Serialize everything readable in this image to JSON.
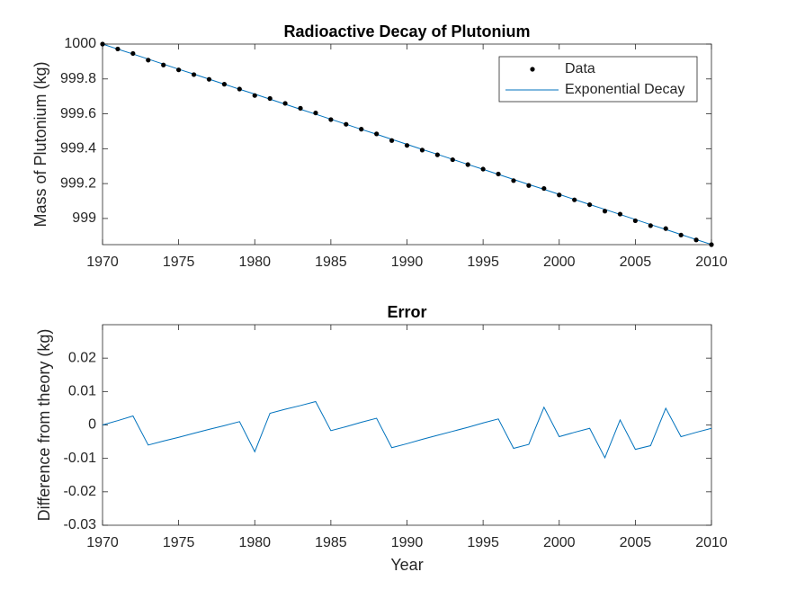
{
  "chart_data": [
    {
      "type": "combo",
      "title": "Radioactive Decay of Plutonium",
      "y_label": "Mass of Plutonium (kg)",
      "x": [
        1970,
        1971,
        1972,
        1973,
        1974,
        1975,
        1976,
        1977,
        1978,
        1979,
        1980,
        1981,
        1982,
        1983,
        1984,
        1985,
        1986,
        1987,
        1988,
        1989,
        1990,
        1991,
        1992,
        1993,
        1994,
        1995,
        1996,
        1997,
        1998,
        1999,
        2000,
        2001,
        2002,
        2003,
        2004,
        2005,
        2006,
        2007,
        2008,
        2009,
        2010
      ],
      "series": [
        {
          "name": "Data",
          "kind": "scatter",
          "color": "#000000",
          "values": [
            1000,
            999.972,
            999.946,
            999.908,
            999.88,
            999.852,
            999.825,
            999.798,
            999.77,
            999.742,
            999.705,
            999.688,
            999.66,
            999.632,
            999.605,
            999.567,
            999.54,
            999.512,
            999.485,
            999.447,
            999.419,
            999.392,
            999.365,
            999.337,
            999.309,
            999.283,
            999.255,
            999.217,
            999.189,
            999.172,
            999.135,
            999.107,
            999.079,
            999.042,
            999.025,
            998.987,
            998.959,
            998.942,
            998.905,
            998.877,
            998.85
          ]
        },
        {
          "name": "Exponential Decay",
          "kind": "line",
          "color": "#0072bd",
          "values": [
            1000,
            999.971,
            999.943,
            999.914,
            999.885,
            999.856,
            999.828,
            999.799,
            999.77,
            999.741,
            999.713,
            999.684,
            999.655,
            999.626,
            999.598,
            999.569,
            999.54,
            999.511,
            999.483,
            999.454,
            999.425,
            999.396,
            999.368,
            999.339,
            999.31,
            999.282,
            999.253,
            999.224,
            999.195,
            999.167,
            999.138,
            999.109,
            999.08,
            999.052,
            999.023,
            998.994,
            998.965,
            998.937,
            998.908,
            998.879,
            998.851
          ]
        }
      ],
      "xlim": [
        1970,
        2010
      ],
      "xticks": [
        1970,
        1975,
        1980,
        1985,
        1990,
        1995,
        2000,
        2005,
        2010
      ],
      "ylim": [
        998.85,
        1000
      ],
      "yticks": [
        999,
        999.2,
        999.4,
        999.6,
        999.8,
        1000
      ],
      "legend": "northeast"
    },
    {
      "type": "line",
      "title": "Error",
      "x_label": "Year",
      "y_label": "Difference from theory (kg)",
      "x": [
        1970,
        1971,
        1972,
        1973,
        1974,
        1975,
        1976,
        1977,
        1978,
        1979,
        1980,
        1981,
        1982,
        1983,
        1984,
        1985,
        1986,
        1987,
        1988,
        1989,
        1990,
        1991,
        1992,
        1993,
        1994,
        1995,
        1996,
        1997,
        1998,
        1999,
        2000,
        2001,
        2002,
        2003,
        2004,
        2005,
        2006,
        2007,
        2008,
        2009,
        2010
      ],
      "series": [
        {
          "color": "#0072bd",
          "values": [
            0,
            0.0013,
            0.0027,
            -0.006,
            -0.0048,
            -0.0037,
            -0.0025,
            -0.0013,
            -0.0002,
            0.001,
            -0.008,
            0.0035,
            0.0047,
            0.0058,
            0.007,
            -0.0017,
            -0.0005,
            0.0008,
            0.002,
            -0.0068,
            -0.0056,
            -0.0043,
            -0.0031,
            -0.0019,
            -0.0007,
            0.0006,
            0.0018,
            -0.007,
            -0.0058,
            0.0053,
            -0.0035,
            -0.0022,
            -0.001,
            -0.0098,
            0.0015,
            -0.0073,
            -0.0062,
            0.005,
            -0.0035,
            -0.0022,
            -0.001
          ]
        }
      ],
      "xlim": [
        1970,
        2010
      ],
      "xticks": [
        1970,
        1975,
        1980,
        1985,
        1990,
        1995,
        2000,
        2005,
        2010
      ],
      "ylim": [
        -0.03,
        0.03
      ],
      "yticks": [
        -0.03,
        -0.02,
        -0.01,
        0,
        0.01,
        0.02
      ]
    }
  ]
}
